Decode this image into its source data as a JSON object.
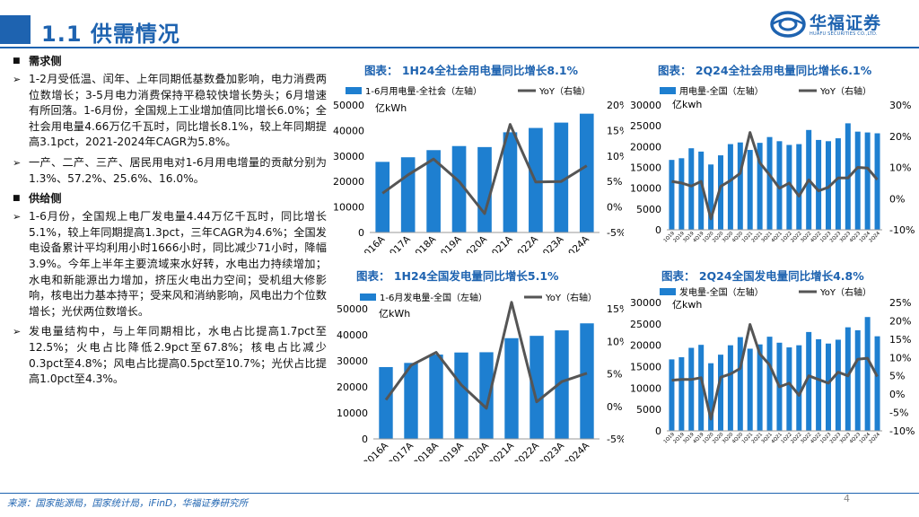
{
  "header": {
    "title": "1.1 供需情况",
    "logo_name": "华福证券",
    "logo_sub": "HUAFU SECURITIES CO.,LTD."
  },
  "left": {
    "demand_heading": "需求侧",
    "demand_bullets": [
      "1-2月受低温、闰年、上年同期低基数叠加影响，电力消费两位数增长；3-5月电力消费保持平稳较快增长势头；6月增速有所回落。1-6月份，全国规上工业增加值同比增长6.0%；全社会用电量4.66万亿千瓦时，同比增长8.1%，较上年同期提高3.1pct，2021-2024年CAGR为5.8%。",
      "一产、二产、三产、居民用电对1-6月用电增量的贡献分别为1.3%、57.2%、25.6%、16.0%。"
    ],
    "supply_heading": "供给侧",
    "supply_bullets": [
      "1-6月份，全国规上电厂发电量4.44万亿千瓦时，同比增长5.1%，较上年同期提高1.3pct，三年CAGR为4.6%；全国发电设备累计平均利用小时1666小时，同比减少71小时，降幅3.9%。今年上半年主要流域来水好转，水电出力持续增加；水电和新能源出力增加，挤压火电出力空间；受机组大修影响，核电出力基本持平；受来风和消纳影响，风电出力个位数增长；光伏两位数增长。",
      "发电量结构中，与上年同期相比，水电占比提高1.7pct至12.5%；火电占比降低2.9pct至67.8%；核电占比减少0.3pct至4.8%；风电占比提高0.5pct至10.7%；光伏占比提高1.0pct至4.3%。"
    ]
  },
  "footer": {
    "source": "来源：国家能源局，国家统计局，iFinD，华福证券研究所",
    "page": "4"
  },
  "colors": {
    "brand": "#1E63B0",
    "bar": "#1E7FD0",
    "line": "#555555"
  },
  "chart_data": [
    {
      "type": "bar",
      "title": "图表：  1H24全社会用电量同比增长8.1%",
      "legend": [
        "1-6月用电量-全社会（左轴）",
        "YoY（右轴）"
      ],
      "unit": "亿kWh",
      "categories": [
        "2016A",
        "2017A",
        "2018A",
        "2019A",
        "2020A",
        "2021A",
        "2022A",
        "2023A",
        "2024A"
      ],
      "series": [
        {
          "name": "1-6月用电量-全社会（左轴）",
          "type": "bar",
          "axis": "left",
          "values": [
            27700,
            29500,
            32300,
            33900,
            33500,
            39300,
            41000,
            43100,
            46600
          ]
        },
        {
          "name": "YoY（右轴）",
          "type": "line",
          "axis": "right",
          "values": [
            2.7,
            6.3,
            9.4,
            5.0,
            -1.3,
            16.2,
            4.9,
            5.0,
            8.1
          ]
        }
      ],
      "ylim_left": [
        0,
        50000
      ],
      "yticks_left": [
        "0",
        "10000",
        "20000",
        "30000",
        "40000",
        "50000"
      ],
      "ylim_right": [
        -5,
        20
      ],
      "yticks_right": [
        "-5%",
        "0%",
        "5%",
        "10%",
        "15%",
        "20%"
      ]
    },
    {
      "type": "bar",
      "title": "图表：  2Q24全社会用电量同比增长6.1%",
      "legend": [
        "用电量-全国（左轴）",
        "YoY（右轴）"
      ],
      "unit": "亿kwh",
      "categories": [
        "1Q19",
        "2Q19",
        "3Q19",
        "4Q19",
        "1Q20",
        "2Q20",
        "3Q20",
        "4Q20",
        "1Q21",
        "2Q21",
        "3Q21",
        "4Q21",
        "1Q22",
        "2Q22",
        "3Q22",
        "4Q22",
        "1Q23",
        "2Q23",
        "3Q23",
        "4Q23",
        "1Q24",
        "2Q24"
      ],
      "series": [
        {
          "name": "用电量-全国（左轴）",
          "type": "bar",
          "axis": "left",
          "values": [
            16800,
            17200,
            19600,
            18800,
            15700,
            17900,
            20600,
            21000,
            19200,
            20900,
            22300,
            21300,
            20400,
            20600,
            24000,
            21600,
            21300,
            22000,
            25600,
            23600,
            23400,
            23200
          ]
        },
        {
          "name": "YoY（右轴）",
          "type": "line",
          "axis": "right",
          "values": [
            5.5,
            5.0,
            4.0,
            5.5,
            -6.5,
            3.9,
            5.8,
            8.1,
            21.2,
            11.5,
            7.6,
            3.3,
            5.0,
            0.8,
            6.0,
            2.5,
            3.6,
            6.6,
            6.6,
            10.0,
            9.8,
            6.1
          ]
        }
      ],
      "ylim_left": [
        0,
        30000
      ],
      "yticks_left": [
        "0",
        "5000",
        "10000",
        "15000",
        "20000",
        "25000",
        "30000"
      ],
      "ylim_right": [
        -10,
        30
      ],
      "yticks_right": [
        "-10%",
        "0%",
        "10%",
        "20%",
        "30%"
      ]
    },
    {
      "type": "bar",
      "title": "图表：  1H24全国发电量同比增长5.1%",
      "legend": [
        "1-6月发电量-全国（左轴）",
        "YoY（右轴）"
      ],
      "unit": "亿kWh",
      "categories": [
        "2016A",
        "2017A",
        "2018A",
        "2019A",
        "2020A",
        "2021A",
        "2022A",
        "2023A",
        "2024A"
      ],
      "series": [
        {
          "name": "1-6月发电量-全国（左轴）",
          "type": "bar",
          "axis": "left",
          "values": [
            27600,
            29200,
            32400,
            33200,
            33300,
            38700,
            39600,
            41700,
            44400
          ]
        },
        {
          "name": "YoY（右轴）",
          "type": "line",
          "axis": "right",
          "values": [
            1.0,
            6.3,
            8.3,
            3.3,
            -0.3,
            16.0,
            0.7,
            3.8,
            5.1
          ]
        }
      ],
      "ylim_left": [
        0,
        50000
      ],
      "yticks_left": [
        "0",
        "10000",
        "20000",
        "30000",
        "40000",
        "50000"
      ],
      "ylim_right": [
        -5,
        15
      ],
      "yticks_right": [
        "-5%",
        "0%",
        "5%",
        "10%",
        "15%"
      ]
    },
    {
      "type": "bar",
      "title": "图表：  2Q24全国发电量同比增长4.8%",
      "legend": [
        "发电量-全国（左轴）",
        "YoY（右轴）"
      ],
      "unit": "亿kwh",
      "categories": [
        "1Q19",
        "2Q19",
        "3Q19",
        "4Q19",
        "1Q20",
        "2Q20",
        "3Q20",
        "4Q20",
        "1Q21",
        "2Q21",
        "3Q21",
        "4Q21",
        "1Q22",
        "2Q22",
        "3Q22",
        "4Q22",
        "1Q23",
        "2Q23",
        "3Q23",
        "4Q23",
        "1Q24",
        "2Q24"
      ],
      "series": [
        {
          "name": "发电量-全国（左轴）",
          "type": "bar",
          "axis": "left",
          "values": [
            16700,
            17200,
            19400,
            20100,
            15800,
            17800,
            20000,
            21900,
            19200,
            20200,
            22000,
            20600,
            19500,
            20000,
            23100,
            21400,
            20400,
            21300,
            24200,
            23500,
            26600,
            22100
          ]
        },
        {
          "name": "YoY（右轴）",
          "type": "line",
          "axis": "right",
          "values": [
            3.8,
            4.0,
            4.0,
            4.5,
            -6.8,
            4.6,
            5.5,
            7.0,
            19.0,
            11.0,
            8.0,
            2.0,
            3.0,
            -0.3,
            5.0,
            4.0,
            3.0,
            6.0,
            5.0,
            9.5,
            9.8,
            4.8
          ]
        }
      ],
      "ylim_left": [
        0,
        30000
      ],
      "yticks_left": [
        "0",
        "5000",
        "10000",
        "15000",
        "20000",
        "25000",
        "30000"
      ],
      "ylim_right": [
        -10,
        25
      ],
      "yticks_right": [
        "-10%",
        "-5%",
        "0%",
        "5%",
        "10%",
        "15%",
        "20%",
        "25%"
      ]
    }
  ]
}
